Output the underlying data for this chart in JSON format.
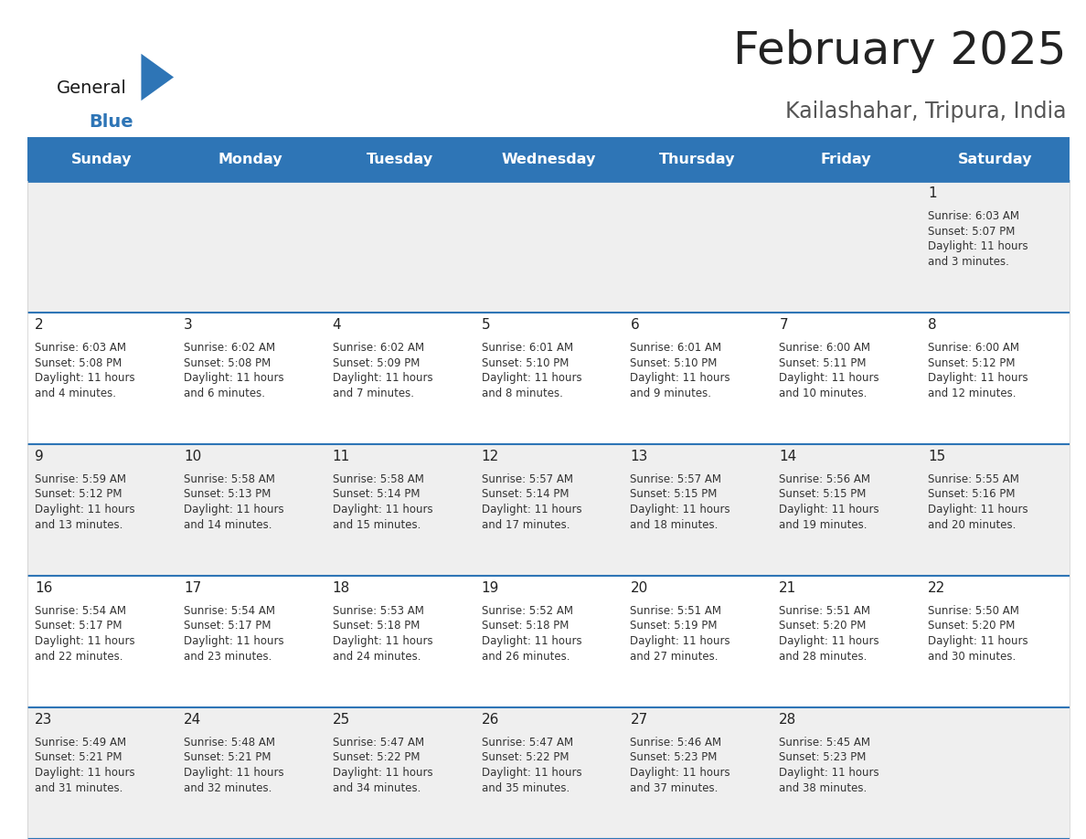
{
  "title": "February 2025",
  "subtitle": "Kailashahar, Tripura, India",
  "header_bg": "#2E75B6",
  "header_text": "#FFFFFF",
  "day_names": [
    "Sunday",
    "Monday",
    "Tuesday",
    "Wednesday",
    "Thursday",
    "Friday",
    "Saturday"
  ],
  "row_bg_odd": "#EFEFEF",
  "row_bg_even": "#FFFFFF",
  "cell_border_color": "#2E75B6",
  "title_color": "#222222",
  "subtitle_color": "#555555",
  "day_num_color": "#222222",
  "info_color": "#333333",
  "calendar_data": [
    {
      "day": 1,
      "col": 6,
      "row": 0,
      "sunrise": "6:03 AM",
      "sunset": "5:07 PM",
      "dl_hours": "11 hours",
      "dl_mins": "3 minutes."
    },
    {
      "day": 2,
      "col": 0,
      "row": 1,
      "sunrise": "6:03 AM",
      "sunset": "5:08 PM",
      "dl_hours": "11 hours",
      "dl_mins": "4 minutes."
    },
    {
      "day": 3,
      "col": 1,
      "row": 1,
      "sunrise": "6:02 AM",
      "sunset": "5:08 PM",
      "dl_hours": "11 hours",
      "dl_mins": "6 minutes."
    },
    {
      "day": 4,
      "col": 2,
      "row": 1,
      "sunrise": "6:02 AM",
      "sunset": "5:09 PM",
      "dl_hours": "11 hours",
      "dl_mins": "7 minutes."
    },
    {
      "day": 5,
      "col": 3,
      "row": 1,
      "sunrise": "6:01 AM",
      "sunset": "5:10 PM",
      "dl_hours": "11 hours",
      "dl_mins": "8 minutes."
    },
    {
      "day": 6,
      "col": 4,
      "row": 1,
      "sunrise": "6:01 AM",
      "sunset": "5:10 PM",
      "dl_hours": "11 hours",
      "dl_mins": "9 minutes."
    },
    {
      "day": 7,
      "col": 5,
      "row": 1,
      "sunrise": "6:00 AM",
      "sunset": "5:11 PM",
      "dl_hours": "11 hours",
      "dl_mins": "10 minutes."
    },
    {
      "day": 8,
      "col": 6,
      "row": 1,
      "sunrise": "6:00 AM",
      "sunset": "5:12 PM",
      "dl_hours": "11 hours",
      "dl_mins": "12 minutes."
    },
    {
      "day": 9,
      "col": 0,
      "row": 2,
      "sunrise": "5:59 AM",
      "sunset": "5:12 PM",
      "dl_hours": "11 hours",
      "dl_mins": "13 minutes."
    },
    {
      "day": 10,
      "col": 1,
      "row": 2,
      "sunrise": "5:58 AM",
      "sunset": "5:13 PM",
      "dl_hours": "11 hours",
      "dl_mins": "14 minutes."
    },
    {
      "day": 11,
      "col": 2,
      "row": 2,
      "sunrise": "5:58 AM",
      "sunset": "5:14 PM",
      "dl_hours": "11 hours",
      "dl_mins": "15 minutes."
    },
    {
      "day": 12,
      "col": 3,
      "row": 2,
      "sunrise": "5:57 AM",
      "sunset": "5:14 PM",
      "dl_hours": "11 hours",
      "dl_mins": "17 minutes."
    },
    {
      "day": 13,
      "col": 4,
      "row": 2,
      "sunrise": "5:57 AM",
      "sunset": "5:15 PM",
      "dl_hours": "11 hours",
      "dl_mins": "18 minutes."
    },
    {
      "day": 14,
      "col": 5,
      "row": 2,
      "sunrise": "5:56 AM",
      "sunset": "5:15 PM",
      "dl_hours": "11 hours",
      "dl_mins": "19 minutes."
    },
    {
      "day": 15,
      "col": 6,
      "row": 2,
      "sunrise": "5:55 AM",
      "sunset": "5:16 PM",
      "dl_hours": "11 hours",
      "dl_mins": "20 minutes."
    },
    {
      "day": 16,
      "col": 0,
      "row": 3,
      "sunrise": "5:54 AM",
      "sunset": "5:17 PM",
      "dl_hours": "11 hours",
      "dl_mins": "22 minutes."
    },
    {
      "day": 17,
      "col": 1,
      "row": 3,
      "sunrise": "5:54 AM",
      "sunset": "5:17 PM",
      "dl_hours": "11 hours",
      "dl_mins": "23 minutes."
    },
    {
      "day": 18,
      "col": 2,
      "row": 3,
      "sunrise": "5:53 AM",
      "sunset": "5:18 PM",
      "dl_hours": "11 hours",
      "dl_mins": "24 minutes."
    },
    {
      "day": 19,
      "col": 3,
      "row": 3,
      "sunrise": "5:52 AM",
      "sunset": "5:18 PM",
      "dl_hours": "11 hours",
      "dl_mins": "26 minutes."
    },
    {
      "day": 20,
      "col": 4,
      "row": 3,
      "sunrise": "5:51 AM",
      "sunset": "5:19 PM",
      "dl_hours": "11 hours",
      "dl_mins": "27 minutes."
    },
    {
      "day": 21,
      "col": 5,
      "row": 3,
      "sunrise": "5:51 AM",
      "sunset": "5:20 PM",
      "dl_hours": "11 hours",
      "dl_mins": "28 minutes."
    },
    {
      "day": 22,
      "col": 6,
      "row": 3,
      "sunrise": "5:50 AM",
      "sunset": "5:20 PM",
      "dl_hours": "11 hours",
      "dl_mins": "30 minutes."
    },
    {
      "day": 23,
      "col": 0,
      "row": 4,
      "sunrise": "5:49 AM",
      "sunset": "5:21 PM",
      "dl_hours": "11 hours",
      "dl_mins": "31 minutes."
    },
    {
      "day": 24,
      "col": 1,
      "row": 4,
      "sunrise": "5:48 AM",
      "sunset": "5:21 PM",
      "dl_hours": "11 hours",
      "dl_mins": "32 minutes."
    },
    {
      "day": 25,
      "col": 2,
      "row": 4,
      "sunrise": "5:47 AM",
      "sunset": "5:22 PM",
      "dl_hours": "11 hours",
      "dl_mins": "34 minutes."
    },
    {
      "day": 26,
      "col": 3,
      "row": 4,
      "sunrise": "5:47 AM",
      "sunset": "5:22 PM",
      "dl_hours": "11 hours",
      "dl_mins": "35 minutes."
    },
    {
      "day": 27,
      "col": 4,
      "row": 4,
      "sunrise": "5:46 AM",
      "sunset": "5:23 PM",
      "dl_hours": "11 hours",
      "dl_mins": "37 minutes."
    },
    {
      "day": 28,
      "col": 5,
      "row": 4,
      "sunrise": "5:45 AM",
      "sunset": "5:23 PM",
      "dl_hours": "11 hours",
      "dl_mins": "38 minutes."
    }
  ],
  "num_rows": 5,
  "num_cols": 7,
  "logo_general_color": "#1a1a1a",
  "logo_blue_color": "#2E75B6",
  "figsize": [
    11.88,
    9.18
  ],
  "dpi": 100
}
